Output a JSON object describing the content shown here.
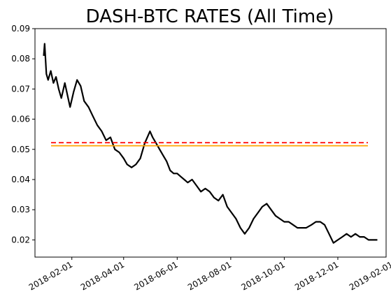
{
  "chart_data": {
    "type": "line",
    "title": "DASH-BTC RATES (All Time)",
    "xlabel": "",
    "ylabel": "",
    "x_range": [
      "2017-12-21",
      "2019-01-25"
    ],
    "ylim": [
      0.0143,
      0.09
    ],
    "yticks": [
      0.02,
      0.03,
      0.04,
      0.05,
      0.06,
      0.07,
      0.08,
      0.09
    ],
    "ytick_labels": [
      "0.02",
      "0.03",
      "0.04",
      "0.05",
      "0.06",
      "0.07",
      "0.08",
      "0.09"
    ],
    "xticks": [
      "2018-02-01",
      "2018-04-01",
      "2018-06-01",
      "2018-08-01",
      "2018-10-01",
      "2018-12-01",
      "2019-02-01"
    ],
    "xtick_labels": [
      "2018-02-01",
      "2018-04-01",
      "2018-06-01",
      "2018-08-01",
      "2018-10-01",
      "2018-12-01",
      "2019-02-01"
    ],
    "grid": false,
    "legend": "none",
    "series": [
      {
        "color": "#000000",
        "x": [
          "2017-12-31",
          "2018-01-01",
          "2018-01-03",
          "2018-01-05",
          "2018-01-08",
          "2018-01-11",
          "2018-01-14",
          "2018-01-17",
          "2018-01-20",
          "2018-01-24",
          "2018-01-27",
          "2018-01-30",
          "2018-02-03",
          "2018-02-07",
          "2018-02-11",
          "2018-02-15",
          "2018-02-20",
          "2018-02-25",
          "2018-03-02",
          "2018-03-07",
          "2018-03-12",
          "2018-03-17",
          "2018-03-22",
          "2018-03-27",
          "2018-04-01",
          "2018-04-05",
          "2018-04-10",
          "2018-04-15",
          "2018-04-20",
          "2018-04-25",
          "2018-05-01",
          "2018-05-04",
          "2018-05-08",
          "2018-05-12",
          "2018-05-16",
          "2018-05-20",
          "2018-05-24",
          "2018-05-28",
          "2018-06-01",
          "2018-06-05",
          "2018-06-09",
          "2018-06-13",
          "2018-06-18",
          "2018-06-23",
          "2018-06-28",
          "2018-07-03",
          "2018-07-08",
          "2018-07-13",
          "2018-07-18",
          "2018-07-23",
          "2018-07-28",
          "2018-08-02",
          "2018-08-07",
          "2018-08-12",
          "2018-08-17",
          "2018-08-22",
          "2018-08-27",
          "2018-09-01",
          "2018-09-06",
          "2018-09-11",
          "2018-09-16",
          "2018-09-21",
          "2018-09-26",
          "2018-10-01",
          "2018-10-06",
          "2018-10-11",
          "2018-10-16",
          "2018-10-21",
          "2018-10-26",
          "2018-11-01",
          "2018-11-06",
          "2018-11-11",
          "2018-11-16",
          "2018-11-21",
          "2018-11-26",
          "2018-12-01",
          "2018-12-06",
          "2018-12-11",
          "2018-12-16",
          "2018-12-21",
          "2018-12-26",
          "2018-12-31",
          "2019-01-05",
          "2019-01-10",
          "2019-01-15"
        ],
        "y": [
          0.081,
          0.085,
          0.075,
          0.073,
          0.076,
          0.072,
          0.074,
          0.07,
          0.067,
          0.072,
          0.068,
          0.064,
          0.069,
          0.073,
          0.071,
          0.066,
          0.064,
          0.061,
          0.058,
          0.056,
          0.053,
          0.054,
          0.05,
          0.049,
          0.047,
          0.045,
          0.044,
          0.045,
          0.047,
          0.052,
          0.056,
          0.054,
          0.052,
          0.05,
          0.048,
          0.046,
          0.043,
          0.042,
          0.042,
          0.041,
          0.04,
          0.039,
          0.04,
          0.038,
          0.036,
          0.037,
          0.036,
          0.034,
          0.033,
          0.035,
          0.031,
          0.029,
          0.027,
          0.024,
          0.022,
          0.024,
          0.027,
          0.029,
          0.031,
          0.032,
          0.03,
          0.028,
          0.027,
          0.026,
          0.026,
          0.025,
          0.024,
          0.024,
          0.024,
          0.025,
          0.026,
          0.026,
          0.025,
          0.022,
          0.019,
          0.02,
          0.021,
          0.022,
          0.021,
          0.022,
          0.021,
          0.021,
          0.02,
          0.02,
          0.02
        ]
      }
    ],
    "hlines": [
      {
        "y": 0.0522,
        "color": "#ff0000",
        "style": "dashed"
      },
      {
        "y": 0.0512,
        "color": "#ffa500",
        "style": "solid"
      }
    ]
  }
}
